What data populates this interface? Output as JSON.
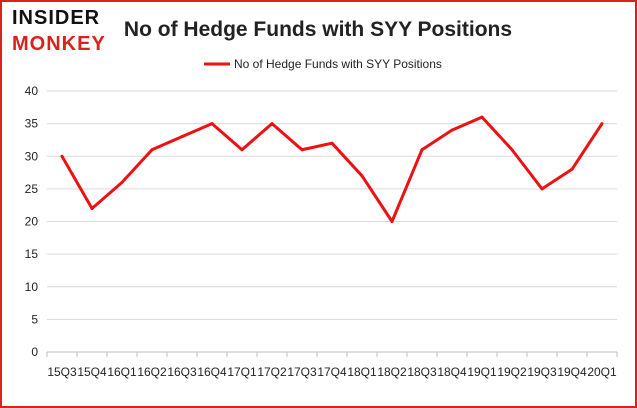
{
  "logo": {
    "line1": "INSIDER",
    "line2": "MONKEY"
  },
  "colors": {
    "series": "#ee1111",
    "border": "#d9231a",
    "grid": "#d9d9d9",
    "axis": "#bfbfbf",
    "text": "#222222",
    "logo_dark": "#111111",
    "logo_red": "#d9231a"
  },
  "chart_data": {
    "type": "line",
    "title": "No of Hedge Funds with SYY Positions",
    "xlabel": "",
    "ylabel": "",
    "ylim": [
      0,
      40
    ],
    "yticks": [
      0,
      5,
      10,
      15,
      20,
      25,
      30,
      35,
      40
    ],
    "grid": "horizontal",
    "legend_position": "top-center",
    "categories": [
      "15Q3",
      "15Q4",
      "16Q1",
      "16Q2",
      "16Q3",
      "16Q4",
      "17Q1",
      "17Q2",
      "17Q3",
      "17Q4",
      "18Q1",
      "18Q2",
      "18Q3",
      "18Q4",
      "19Q1",
      "19Q2",
      "19Q3",
      "19Q4",
      "20Q1"
    ],
    "series": [
      {
        "name": "No of Hedge Funds with SYY Positions",
        "values": [
          30,
          22,
          26,
          31,
          33,
          35,
          31,
          35,
          31,
          32,
          27,
          20,
          31,
          34,
          36,
          31,
          25,
          28,
          35
        ]
      }
    ]
  }
}
